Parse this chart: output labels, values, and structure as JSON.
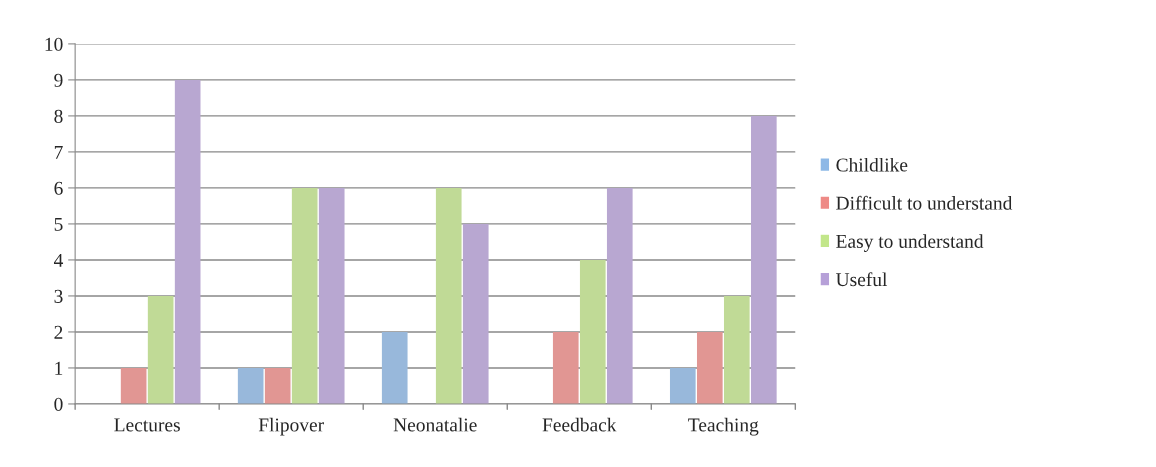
{
  "chart_data": {
    "type": "bar",
    "categories": [
      "Lectures",
      "Flipover",
      "Neonatalie",
      "Feedback",
      "Teaching"
    ],
    "series": [
      {
        "name": "Childlike",
        "color": "#8db8e6",
        "values": [
          0,
          1,
          2,
          0,
          1
        ]
      },
      {
        "name": "Difficult to understand",
        "color": "#ee8a86",
        "values": [
          1,
          1,
          0,
          2,
          2
        ]
      },
      {
        "name": "Easy to understand",
        "color": "#c2e68a",
        "values": [
          3,
          6,
          6,
          4,
          3
        ]
      },
      {
        "name": "Useful",
        "color": "#b6a0d8",
        "values": [
          9,
          6,
          5,
          6,
          8
        ]
      }
    ],
    "ylim": [
      0,
      10
    ],
    "yticks": [
      0,
      1,
      2,
      3,
      4,
      5,
      6,
      7,
      8,
      9,
      10
    ],
    "grid": "y",
    "legend": "right"
  }
}
